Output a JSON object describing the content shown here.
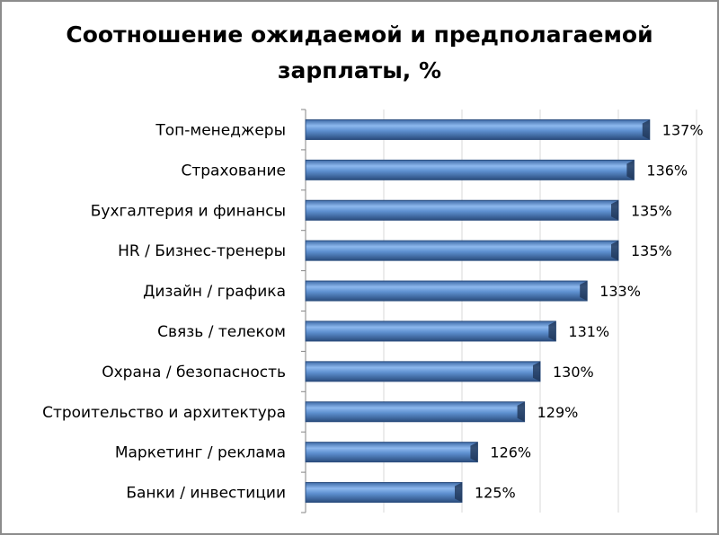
{
  "chart_data": {
    "type": "bar",
    "orientation": "horizontal",
    "title_lines": [
      "Соотношение ожидаемой и предполагаемой",
      "зарплаты, %"
    ],
    "categories": [
      "Топ-менеджеры",
      "Страхование",
      "Бухгалтерия и финансы",
      "HR / Бизнес-тренеры",
      "Дизайн / графика",
      "Связь / телеком",
      "Охрана / безопасность",
      "Строительство и архитектура",
      "Маркетинг / реклама",
      "Банки / инвестиции"
    ],
    "values": [
      137,
      136,
      135,
      135,
      133,
      131,
      130,
      129,
      126,
      125
    ],
    "data_labels": [
      "137%",
      "136%",
      "135%",
      "135%",
      "133%",
      "131%",
      "130%",
      "129%",
      "126%",
      "125%"
    ],
    "xlim": [
      115,
      140
    ],
    "x_gridlines": [
      115,
      120,
      125,
      130,
      135,
      140
    ],
    "grid": true,
    "legend": "none",
    "bar_color": "#4f81bd"
  }
}
